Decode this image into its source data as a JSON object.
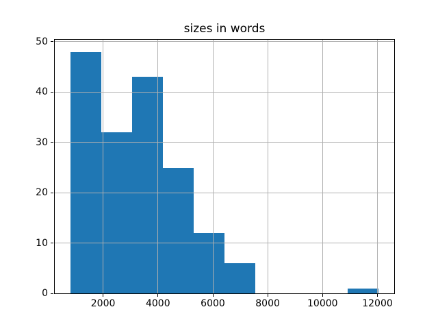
{
  "title": "sizes in words",
  "colors": {
    "bar": "#1f77b4",
    "grid": "#b0b0b0",
    "spine": "#000000",
    "background": "#ffffff",
    "text": "#000000"
  },
  "chart_data": {
    "type": "bar",
    "subtype": "histogram",
    "title": "sizes in words",
    "xlabel": "",
    "ylabel": "",
    "bin_edges": [
      800,
      1925,
      3050,
      4175,
      5300,
      6425,
      7550,
      8675,
      9800,
      10925,
      12050
    ],
    "counts": [
      48,
      32,
      43,
      25,
      12,
      6,
      0,
      0,
      0,
      1
    ],
    "xlim": [
      237.5,
      12612.5
    ],
    "ylim": [
      0,
      50.4
    ],
    "x_tick_values": [
      2000,
      4000,
      6000,
      8000,
      10000,
      12000
    ],
    "x_tick_labels": [
      "2000",
      "4000",
      "6000",
      "8000",
      "10000",
      "12000"
    ],
    "y_tick_values": [
      0,
      10,
      20,
      30,
      40,
      50
    ],
    "y_tick_labels": [
      "0",
      "10",
      "20",
      "30",
      "40",
      "50"
    ],
    "grid": true,
    "grid_above_bars": true,
    "legend": null
  }
}
